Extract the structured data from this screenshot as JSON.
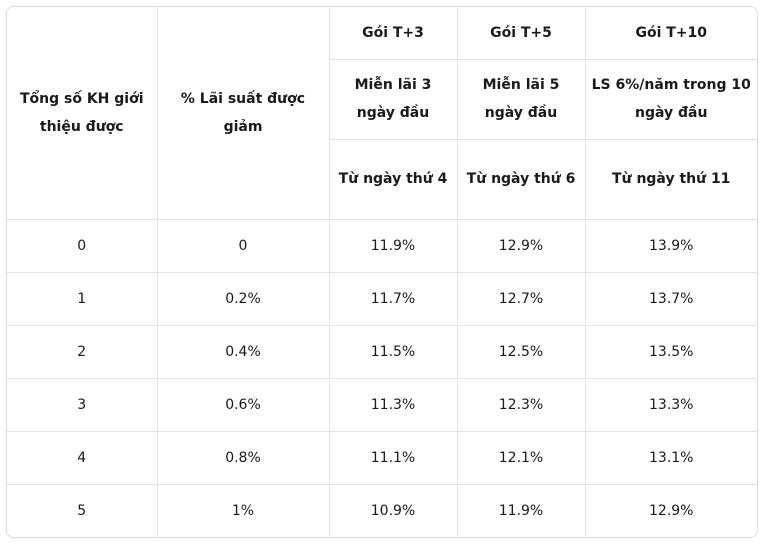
{
  "table": {
    "header": {
      "col_customers": "Tổng số KH giới thiệu được",
      "col_discount": "% Lãi suất được giảm",
      "packages": [
        {
          "name": "Gói T+3",
          "free_period": "Miễn lãi 3 ngày đầu",
          "from_label": "Từ ngày thứ 4"
        },
        {
          "name": "Gói T+5",
          "free_period": "Miễn lãi 5 ngày đầu",
          "from_label": "Từ ngày thứ 6"
        },
        {
          "name": "Gói T+10",
          "free_period": "LS 6%/năm trong 10 ngày đầu",
          "from_label": "Từ ngày thứ 11"
        }
      ]
    },
    "rows": [
      {
        "customers": "0",
        "discount": "0",
        "t3": "11.9%",
        "t5": "12.9%",
        "t10": "13.9%"
      },
      {
        "customers": "1",
        "discount": "0.2%",
        "t3": "11.7%",
        "t5": "12.7%",
        "t10": "13.7%"
      },
      {
        "customers": "2",
        "discount": "0.4%",
        "t3": "11.5%",
        "t5": "12.5%",
        "t10": "13.5%"
      },
      {
        "customers": "3",
        "discount": "0.6%",
        "t3": "11.3%",
        "t5": "12.3%",
        "t10": "13.3%"
      },
      {
        "customers": "4",
        "discount": "0.8%",
        "t3": "11.1%",
        "t5": "12.1%",
        "t10": "13.1%"
      },
      {
        "customers": "5",
        "discount": "1%",
        "t3": "10.9%",
        "t5": "11.9%",
        "t10": "12.9%"
      }
    ]
  }
}
